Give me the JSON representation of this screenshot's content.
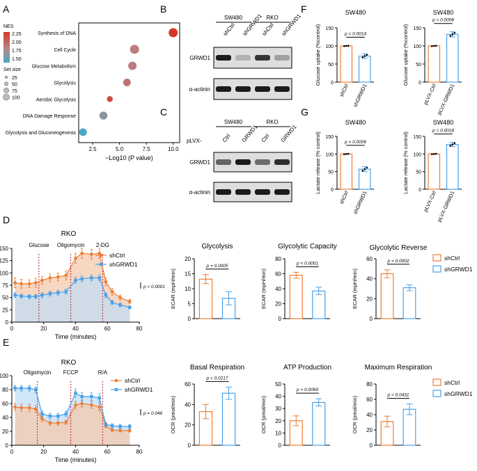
{
  "colors": {
    "orange": "#ee7d31",
    "orange_fill": "#f3c9ae",
    "blue": "#4aa1ea",
    "blue_fill": "#c2ddf4",
    "nes_high": "#d4372a",
    "nes_mid": "#b7878b",
    "nes_low": "#49a9c4",
    "neutral": "#8a8a8a",
    "redline": "#c0182a",
    "blot_dark": "#1b1b1b",
    "blot_bg": "#dedede"
  },
  "panel_labels": {
    "a": "A",
    "b": "B",
    "c": "C",
    "d": "D",
    "e": "E",
    "f": "F",
    "g": "G"
  },
  "legend_common": {
    "ctrl": "shCtrl",
    "kd": "shGRWD1"
  },
  "panel_a": {
    "nes_title": "NES",
    "nes_values": [
      "2.25",
      "2.00",
      "1.75",
      "1.50"
    ],
    "size_title": "Set size",
    "size_values": [
      "25",
      "50",
      "75",
      "100"
    ]
  },
  "panel_b": {
    "groups": [
      "SW480",
      "RKO"
    ],
    "lanes": [
      "shCtrl",
      "shGRWD1",
      "shCtrl",
      "shGRWD1"
    ],
    "rows": [
      "GRWD1",
      "α-actinin"
    ],
    "grwd1_intensity": [
      1.0,
      0.15,
      0.85,
      0.25
    ]
  },
  "panel_c": {
    "groups": [
      "SW480",
      "RKO"
    ],
    "prefix": "pLVX-",
    "lanes": [
      "Ctrl",
      "GRWD1",
      "Ctrl",
      "GRWD1"
    ],
    "rows": [
      "GRWD1",
      "α-actinin"
    ],
    "grwd1_intensity": [
      0.6,
      1.0,
      0.55,
      0.9
    ]
  },
  "chart_data": [
    {
      "id": "A",
      "type": "scatter",
      "title": "",
      "xlabel": "−Log10 (P value)",
      "xlim": [
        1.2,
        10.6
      ],
      "xticks": [
        2.5,
        5.0,
        7.5,
        10.0
      ],
      "xtick_labels": [
        "2.5",
        "5.0",
        "7.5",
        "10.0"
      ],
      "categories": [
        "Synthesis of DNA",
        "Cell Cycle",
        "Glucose Metabolism",
        "Glycolysis",
        "Aerobic Glycolysis",
        "DNA Damage Response",
        "Glycolysis and Gluconeogenesis"
      ],
      "x": [
        10.0,
        6.4,
        6.2,
        5.7,
        4.1,
        3.5,
        1.6
      ],
      "nes": [
        2.3,
        1.95,
        1.95,
        2.0,
        2.2,
        1.75,
        1.5
      ],
      "size": [
        100,
        100,
        80,
        60,
        25,
        70,
        60
      ]
    },
    {
      "id": "D-time",
      "type": "line",
      "title": "RKO",
      "xlabel": "Time (minutes)",
      "ylabel": "ECAR (mpH/min/Norm. Unit)",
      "xlim": [
        0,
        80
      ],
      "ylim": [
        0,
        150
      ],
      "xticks": [
        0,
        20,
        40,
        60,
        80
      ],
      "yticks": [
        0,
        25,
        50,
        75,
        100,
        125,
        150
      ],
      "injections": [
        {
          "x": 17,
          "label": "Glucose"
        },
        {
          "x": 37,
          "label": "Oligomycin"
        },
        {
          "x": 57,
          "label": "2-DG"
        }
      ],
      "annotation": "p < 0.0001",
      "x": [
        2,
        6,
        11,
        15,
        19,
        24,
        29,
        34,
        40,
        44,
        50,
        55,
        59,
        63,
        68,
        74
      ],
      "series": [
        {
          "name": "shCtrl",
          "values": [
            80,
            78,
            78,
            80,
            85,
            90,
            92,
            95,
            130,
            140,
            138,
            140,
            82,
            62,
            50,
            42
          ],
          "err": [
            10,
            9,
            8,
            9,
            8,
            8,
            8,
            9,
            10,
            10,
            10,
            10,
            8,
            7,
            5,
            4
          ]
        },
        {
          "name": "shGRWD1",
          "values": [
            55,
            53,
            52,
            52,
            55,
            58,
            60,
            62,
            85,
            88,
            90,
            90,
            55,
            40,
            35,
            30
          ],
          "err": [
            5,
            4,
            4,
            4,
            5,
            5,
            5,
            5,
            6,
            6,
            6,
            6,
            5,
            4,
            4,
            3
          ]
        }
      ]
    },
    {
      "id": "D-glycolysis",
      "type": "bar",
      "title": "Glycolysis",
      "ylabel": "ECAR (mpH/min)",
      "ylim": [
        0,
        20
      ],
      "yticks": [
        0,
        5,
        10,
        15,
        20
      ],
      "categories": [
        "shCtrl",
        "shGRWD1"
      ],
      "values": [
        13.2,
        6.8
      ],
      "err": [
        1.5,
        2.2
      ],
      "p": "p = 0.0005"
    },
    {
      "id": "D-capacity",
      "type": "bar",
      "title": "Glycolytic Capacity",
      "ylabel": "ECAR (mpH/min)",
      "ylim": [
        0,
        80
      ],
      "yticks": [
        0,
        20,
        40,
        60,
        80
      ],
      "categories": [
        "shCtrl",
        "shGRWD1"
      ],
      "values": [
        58,
        37
      ],
      "err": [
        4,
        5
      ],
      "p": "p < 0.0001"
    },
    {
      "id": "D-reverse",
      "type": "bar",
      "title": "Glycolytic Reverse",
      "ylabel": "ECAR (mpH/min)",
      "ylim": [
        0,
        60
      ],
      "yticks": [
        0,
        20,
        40,
        60
      ],
      "categories": [
        "shCtrl",
        "shGRWD1"
      ],
      "values": [
        45,
        31
      ],
      "err": [
        4,
        3
      ],
      "p": "p = 0.0002"
    },
    {
      "id": "E-time",
      "type": "line",
      "title": "RKO",
      "xlabel": "Time (minutes)",
      "ylabel": "OCR (pmol/min/Norm. Unit)",
      "xlim": [
        0,
        80
      ],
      "ylim": [
        0,
        100
      ],
      "xticks": [
        0,
        20,
        40,
        60,
        80
      ],
      "yticks": [
        0,
        20,
        40,
        60,
        80,
        100
      ],
      "injections": [
        {
          "x": 16,
          "label": "Oligomycin"
        },
        {
          "x": 37,
          "label": "FCCP"
        },
        {
          "x": 57,
          "label": "R/A"
        }
      ],
      "annotation": "p = 0.046",
      "x": [
        2,
        6,
        11,
        15,
        19,
        24,
        29,
        34,
        40,
        44,
        50,
        55,
        59,
        63,
        68,
        74
      ],
      "series": [
        {
          "name": "shCtrl",
          "values": [
            55,
            54,
            54,
            52,
            38,
            32,
            32,
            33,
            58,
            60,
            58,
            55,
            28,
            22,
            21,
            21
          ],
          "err": [
            5,
            5,
            5,
            5,
            4,
            3,
            3,
            3,
            5,
            5,
            5,
            5,
            3,
            2,
            2,
            2
          ]
        },
        {
          "name": "shGRWD1",
          "values": [
            82,
            82,
            82,
            80,
            45,
            42,
            42,
            45,
            75,
            70,
            70,
            68,
            30,
            28,
            27,
            27
          ],
          "err": [
            4,
            4,
            4,
            4,
            4,
            4,
            4,
            4,
            6,
            6,
            6,
            6,
            3,
            3,
            3,
            3
          ]
        }
      ]
    },
    {
      "id": "E-basal",
      "type": "bar",
      "title": "Basal Respiration",
      "ylabel": "OCR (pmol/min)",
      "ylim": [
        0,
        60
      ],
      "yticks": [
        0,
        20,
        40,
        60
      ],
      "categories": [
        "shCtrl",
        "shGRWD1"
      ],
      "values": [
        33,
        51
      ],
      "err": [
        7,
        6
      ],
      "p": "p = 0.0217"
    },
    {
      "id": "E-atp",
      "type": "bar",
      "title": "ATP Production",
      "ylabel": "OCR (pmol/min)",
      "ylim": [
        0,
        50
      ],
      "yticks": [
        0,
        10,
        20,
        30,
        40,
        50
      ],
      "categories": [
        "shCtrl",
        "shGRWD1"
      ],
      "values": [
        20,
        35
      ],
      "err": [
        4,
        3
      ],
      "p": "p = 0.0069"
    },
    {
      "id": "E-max",
      "type": "bar",
      "title": "Maximum Respiration",
      "ylabel": "OCR (pmol/min)",
      "ylim": [
        0,
        80
      ],
      "yticks": [
        0,
        20,
        40,
        60,
        80
      ],
      "categories": [
        "shCtrl",
        "shGRWD1"
      ],
      "values": [
        31,
        47
      ],
      "err": [
        7,
        7
      ],
      "p": "p = 0.0431"
    },
    {
      "id": "F1",
      "type": "bar",
      "title": "SW480",
      "ylabel": "Glucose uptake (%control)",
      "ylim": [
        0,
        150
      ],
      "yticks": [
        0,
        50,
        100,
        150
      ],
      "categories": [
        "shCtrl",
        "shGRWD1"
      ],
      "values": [
        100,
        72
      ],
      "err": [
        1,
        6
      ],
      "p": "p = 0.0014"
    },
    {
      "id": "F2",
      "type": "bar",
      "title": "SW480",
      "ylabel": "Glucose uptake (%control)",
      "ylim": [
        0,
        150
      ],
      "yticks": [
        0,
        50,
        100,
        150
      ],
      "categories": [
        "pLVX-Ctrl",
        "pLVX-GRWD1"
      ],
      "values": [
        100,
        132
      ],
      "err": [
        1,
        7
      ],
      "p": "p = 0.0008"
    },
    {
      "id": "G1",
      "type": "bar",
      "title": "SW480",
      "ylabel": "Lactate release (% control)",
      "ylim": [
        0,
        150
      ],
      "yticks": [
        0,
        50,
        100,
        150
      ],
      "categories": [
        "shCtrl",
        "shGRWD1"
      ],
      "values": [
        100,
        57
      ],
      "err": [
        1,
        7
      ],
      "p": "p = 0.0006"
    },
    {
      "id": "G2",
      "type": "bar",
      "title": "SW480",
      "ylabel": "Lactate release (% control)",
      "ylim": [
        0,
        150
      ],
      "yticks": [
        0,
        50,
        100,
        150
      ],
      "categories": [
        "pLVX-Ctrl",
        "pLVX-GRWD1"
      ],
      "values": [
        100,
        127
      ],
      "err": [
        1,
        6
      ],
      "p": "p = 0.0018"
    }
  ]
}
